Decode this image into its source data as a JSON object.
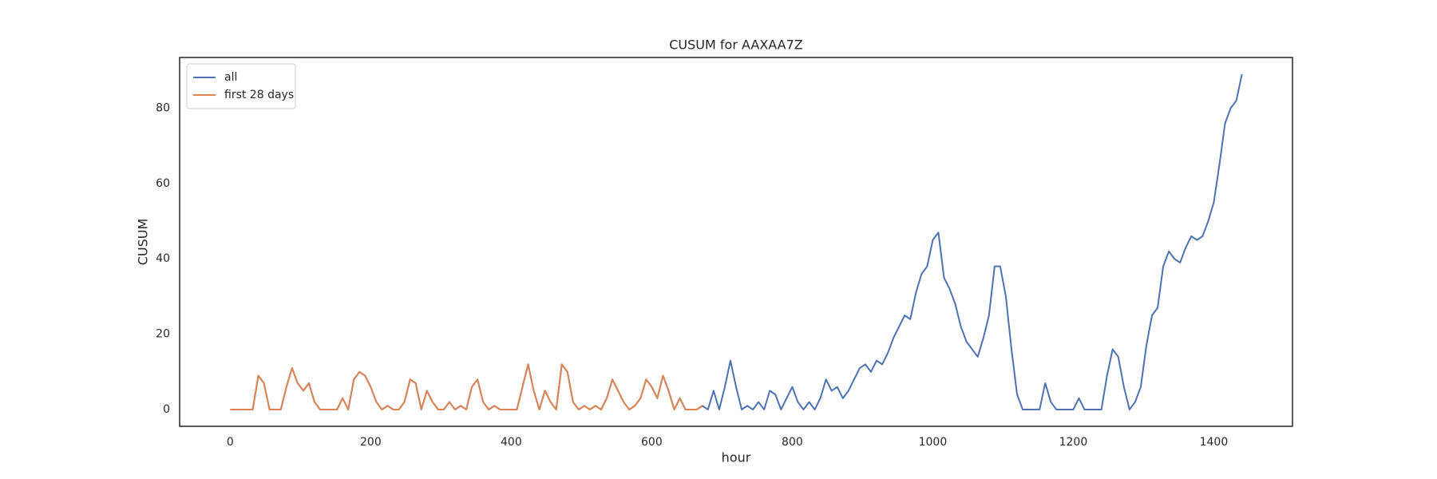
{
  "chart_data": {
    "type": "line",
    "title": "CUSUM for AAXAA7Z",
    "x_label": "hour",
    "y_label": "CUSUM",
    "x": [
      0,
      8,
      16,
      24,
      32,
      40,
      48,
      56,
      64,
      72,
      80,
      88,
      96,
      104,
      112,
      120,
      128,
      136,
      144,
      152,
      160,
      168,
      176,
      184,
      192,
      200,
      208,
      216,
      224,
      232,
      240,
      248,
      256,
      264,
      272,
      280,
      288,
      296,
      304,
      312,
      320,
      328,
      336,
      344,
      352,
      360,
      368,
      376,
      384,
      392,
      400,
      408,
      416,
      424,
      432,
      440,
      448,
      456,
      464,
      472,
      480,
      488,
      496,
      504,
      512,
      520,
      528,
      536,
      544,
      552,
      560,
      568,
      576,
      584,
      592,
      600,
      608,
      616,
      624,
      632,
      640,
      648,
      656,
      664,
      672,
      680,
      688,
      696,
      704,
      712,
      720,
      728,
      736,
      744,
      752,
      760,
      768,
      776,
      784,
      792,
      800,
      808,
      816,
      824,
      832,
      840,
      848,
      856,
      864,
      872,
      880,
      888,
      896,
      904,
      912,
      920,
      928,
      936,
      944,
      952,
      960,
      968,
      976,
      984,
      992,
      1000,
      1008,
      1016,
      1024,
      1032,
      1040,
      1048,
      1056,
      1064,
      1072,
      1080,
      1088,
      1096,
      1104,
      1112,
      1120,
      1128,
      1136,
      1144,
      1152,
      1160,
      1168,
      1176,
      1184,
      1192,
      1200,
      1208,
      1216,
      1224,
      1232,
      1240,
      1248,
      1256,
      1264,
      1272,
      1280,
      1288,
      1296,
      1304,
      1312,
      1320,
      1328,
      1336,
      1344,
      1352,
      1360,
      1368,
      1376,
      1384,
      1392,
      1400,
      1408,
      1416,
      1424,
      1432,
      1440
    ],
    "series": [
      {
        "name": "all",
        "color": "#4c72b0",
        "values": [
          0,
          0,
          0,
          0,
          0,
          9,
          7,
          0,
          0,
          0,
          6,
          11,
          7,
          5,
          7,
          2,
          0,
          0,
          0,
          0,
          3,
          0,
          8,
          10,
          9,
          6,
          2,
          0,
          1,
          0,
          0,
          2,
          8,
          7,
          0,
          5,
          2,
          0,
          0,
          2,
          0,
          1,
          0,
          6,
          8,
          2,
          0,
          1,
          0,
          0,
          0,
          0,
          6,
          12,
          5,
          0,
          5,
          2,
          0,
          12,
          10,
          2,
          0,
          1,
          0,
          1,
          0,
          3,
          8,
          5,
          2,
          0,
          1,
          3,
          8,
          6,
          3,
          9,
          5,
          0,
          3,
          0,
          0,
          0,
          1,
          0,
          5,
          0,
          6,
          13,
          6,
          0,
          1,
          0,
          2,
          0,
          5,
          4,
          0,
          3,
          6,
          2,
          0,
          2,
          0,
          3,
          8,
          5,
          6,
          3,
          5,
          8,
          11,
          12,
          10,
          13,
          12,
          15,
          19,
          22,
          25,
          24,
          31,
          36,
          38,
          45,
          47,
          35,
          32,
          28,
          22,
          18,
          16,
          14,
          19,
          25,
          38,
          38,
          30,
          16,
          4,
          0,
          0,
          0,
          0,
          7,
          2,
          0,
          0,
          0,
          0,
          3,
          0,
          0,
          0,
          0,
          9,
          16,
          14,
          6,
          0,
          2,
          6,
          17,
          25,
          27,
          38,
          42,
          40,
          39,
          43,
          46,
          45,
          46,
          50,
          55,
          65,
          76,
          80,
          82,
          89
        ]
      },
      {
        "name": "first 28 days",
        "color": "#dd8452",
        "values": [
          0,
          0,
          0,
          0,
          0,
          9,
          7,
          0,
          0,
          0,
          6,
          11,
          7,
          5,
          7,
          2,
          0,
          0,
          0,
          0,
          3,
          0,
          8,
          10,
          9,
          6,
          2,
          0,
          1,
          0,
          0,
          2,
          8,
          7,
          0,
          5,
          2,
          0,
          0,
          2,
          0,
          1,
          0,
          6,
          8,
          2,
          0,
          1,
          0,
          0,
          0,
          0,
          6,
          12,
          5,
          0,
          5,
          2,
          0,
          12,
          10,
          2,
          0,
          1,
          0,
          1,
          0,
          3,
          8,
          5,
          2,
          0,
          1,
          3,
          8,
          6,
          3,
          9,
          5,
          0,
          3,
          0,
          0,
          0,
          1,
          null,
          null,
          null,
          null,
          null,
          null,
          null,
          null,
          null,
          null,
          null,
          null,
          null,
          null,
          null,
          null,
          null,
          null,
          null,
          null,
          null,
          null,
          null,
          null,
          null,
          null,
          null,
          null,
          null,
          null,
          null,
          null,
          null,
          null,
          null,
          null,
          null,
          null,
          null,
          null,
          null,
          null,
          null,
          null,
          null,
          null,
          null,
          null,
          null,
          null,
          null,
          null,
          null,
          null,
          null,
          null,
          null,
          null,
          null,
          null,
          null,
          null,
          null,
          null,
          null,
          null,
          null,
          null,
          null,
          null,
          null,
          null,
          null,
          null,
          null,
          null,
          null,
          null,
          null,
          null,
          null,
          null,
          null,
          null,
          null,
          null,
          null,
          null,
          null,
          null,
          null,
          null,
          null,
          null,
          null,
          null
        ]
      }
    ],
    "xlim": [
      -72,
      1512
    ],
    "xticks": [
      0,
      200,
      400,
      600,
      800,
      1000,
      1200,
      1400
    ],
    "ylim": [
      -4.45,
      93.45
    ],
    "yticks": [
      0,
      20,
      40,
      60,
      80
    ],
    "grid": false,
    "legend": "upper left"
  }
}
